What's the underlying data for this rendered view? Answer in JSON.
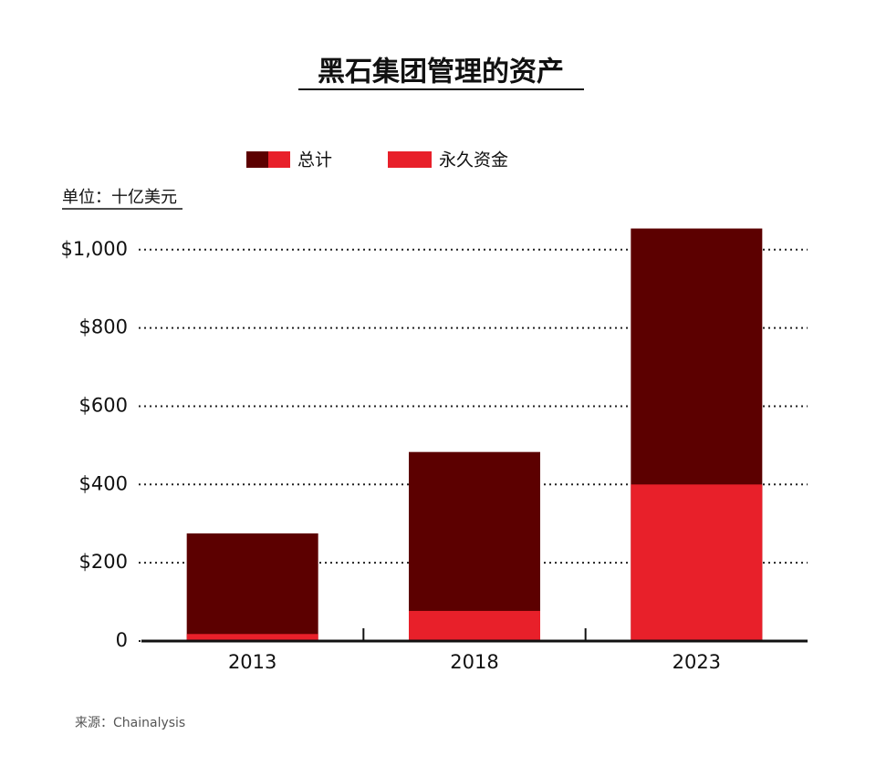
{
  "chart_data": {
    "type": "bar",
    "title": "黑石集团管理的资产",
    "unit_label": "单位：十亿美元",
    "source": "来源：Chainalysis",
    "categories": [
      "2013",
      "2018",
      "2023"
    ],
    "series": [
      {
        "name": "总计",
        "color": "#5c0000",
        "values": [
          275,
          483,
          1054
        ]
      },
      {
        "name": "永久资金",
        "color": "#e8202a",
        "values": [
          18,
          77,
          400
        ]
      }
    ],
    "overlap": true,
    "ylim": [
      0,
      1060
    ],
    "yticks": [
      0,
      {
        "value": 200,
        "label": "$200"
      },
      {
        "value": 400,
        "label": "$400"
      },
      {
        "value": 600,
        "label": "$600"
      },
      {
        "value": 800,
        "label": "$800"
      },
      {
        "value": 1000,
        "label": "$1,000"
      }
    ],
    "grid": true
  }
}
